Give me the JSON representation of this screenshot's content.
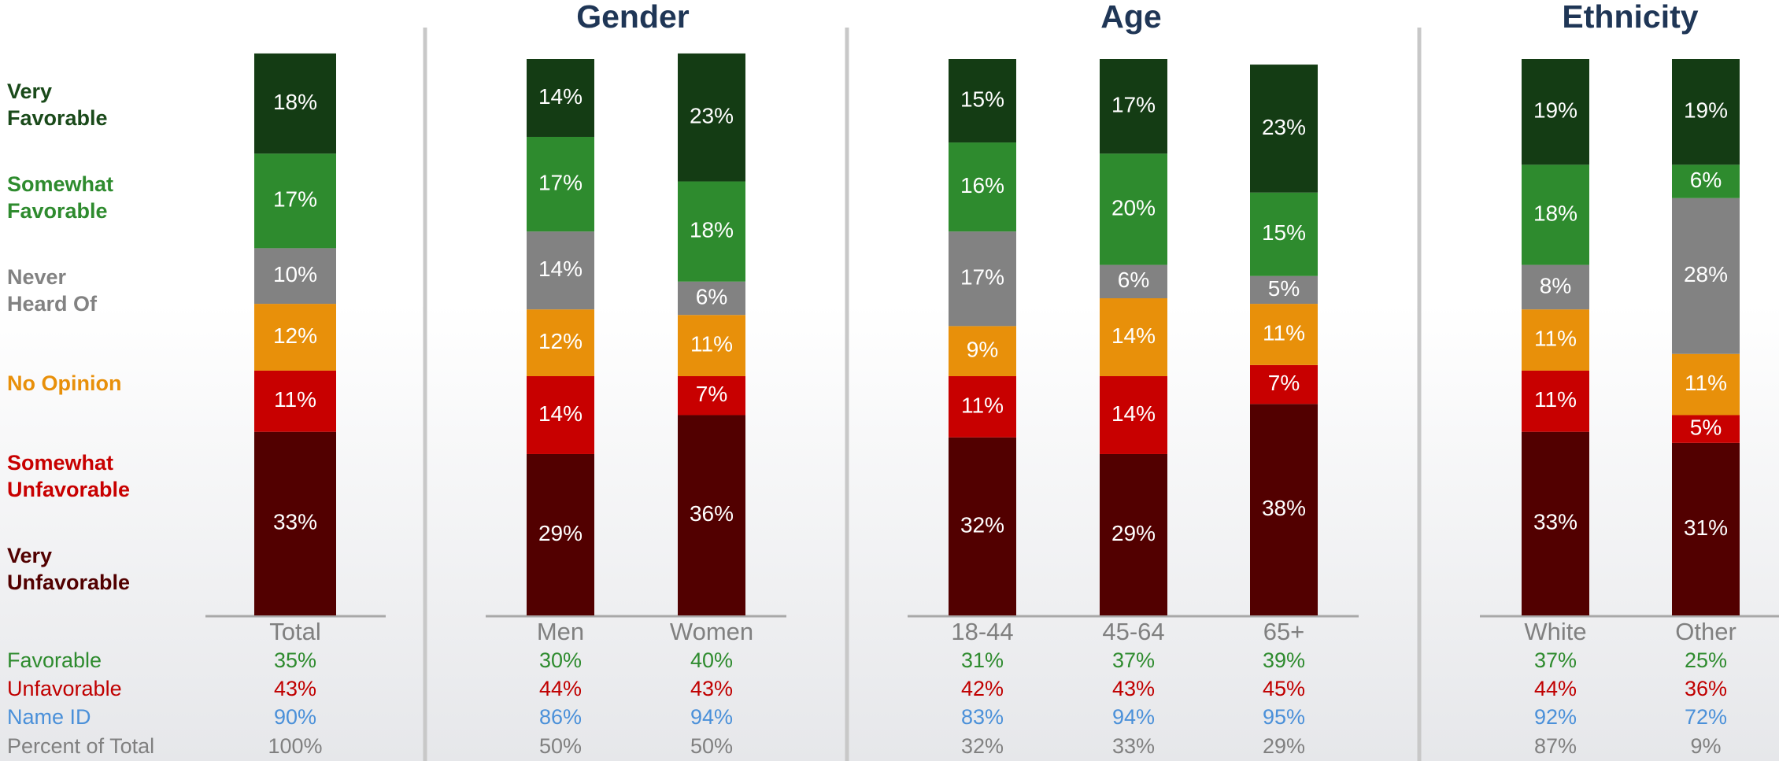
{
  "chart_data": {
    "type": "stacked_bar",
    "group_titles": [
      "Gender",
      "Age",
      "Ethnicity"
    ],
    "categories": [
      "Total",
      "Men",
      "Women",
      "18-44",
      "45-64",
      "65+",
      "White",
      "Other"
    ],
    "ylim": [
      0,
      100
    ],
    "series": [
      {
        "name": "Very Favorable",
        "color": "#143c14",
        "values": [
          18,
          14,
          23,
          15,
          17,
          23,
          19,
          19
        ],
        "value_labels": [
          "18%",
          "14%",
          "23%",
          "15%",
          "17%",
          "23%",
          "19%",
          "19%"
        ]
      },
      {
        "name": "Somewhat Favorable",
        "color": "#2e8b2e",
        "values": [
          17,
          17,
          18,
          16,
          20,
          15,
          18,
          6
        ],
        "value_labels": [
          "17%",
          "17%",
          "18%",
          "16%",
          "20%",
          "15%",
          "18%",
          "6%"
        ]
      },
      {
        "name": "Never Heard Of",
        "color": "#828282",
        "values": [
          10,
          14,
          6,
          17,
          6,
          5,
          8,
          28
        ],
        "value_labels": [
          "10%",
          "14%",
          "6%",
          "17%",
          "6%",
          "5%",
          "8%",
          "28%"
        ]
      },
      {
        "name": "No Opinion",
        "color": "#e8900a",
        "values": [
          12,
          12,
          11,
          9,
          14,
          11,
          11,
          11
        ],
        "value_labels": [
          "12%",
          "12%",
          "11%",
          "9%",
          "14%",
          "11%",
          "11%",
          "11%"
        ]
      },
      {
        "name": "Somewhat Unfavorable",
        "color": "#c80000",
        "values": [
          11,
          14,
          7,
          11,
          14,
          7,
          11,
          5
        ],
        "value_labels": [
          "11%",
          "14%",
          "7%",
          "11%",
          "14%",
          "7%",
          "11%",
          "5%"
        ]
      },
      {
        "name": "Very Unfavorable",
        "color": "#520000",
        "values": [
          33,
          29,
          36,
          32,
          29,
          38,
          33,
          31
        ],
        "value_labels": [
          "33%",
          "29%",
          "36%",
          "32%",
          "29%",
          "38%",
          "33%",
          "31%"
        ]
      }
    ],
    "table": [
      {
        "name": "Favorable",
        "color": "#2e8b2e",
        "values": [
          35,
          30,
          40,
          31,
          37,
          39,
          37,
          25
        ],
        "value_labels": [
          "35%",
          "30%",
          "40%",
          "31%",
          "37%",
          "39%",
          "37%",
          "25%"
        ]
      },
      {
        "name": "Unfavorable",
        "color": "#c00000",
        "values": [
          43,
          44,
          43,
          42,
          43,
          45,
          44,
          36
        ],
        "value_labels": [
          "43%",
          "44%",
          "43%",
          "42%",
          "43%",
          "45%",
          "44%",
          "36%"
        ]
      },
      {
        "name": "Name ID",
        "color": "#4a90d9",
        "values": [
          90,
          86,
          94,
          83,
          94,
          95,
          92,
          72
        ],
        "value_labels": [
          "90%",
          "86%",
          "94%",
          "83%",
          "94%",
          "95%",
          "92%",
          "72%"
        ]
      },
      {
        "name": "Percent of Total",
        "color": "#808080",
        "values": [
          100,
          50,
          50,
          32,
          33,
          29,
          87,
          9
        ],
        "value_labels": [
          "100%",
          "50%",
          "50%",
          "32%",
          "33%",
          "29%",
          "87%",
          "9%"
        ]
      }
    ]
  }
}
